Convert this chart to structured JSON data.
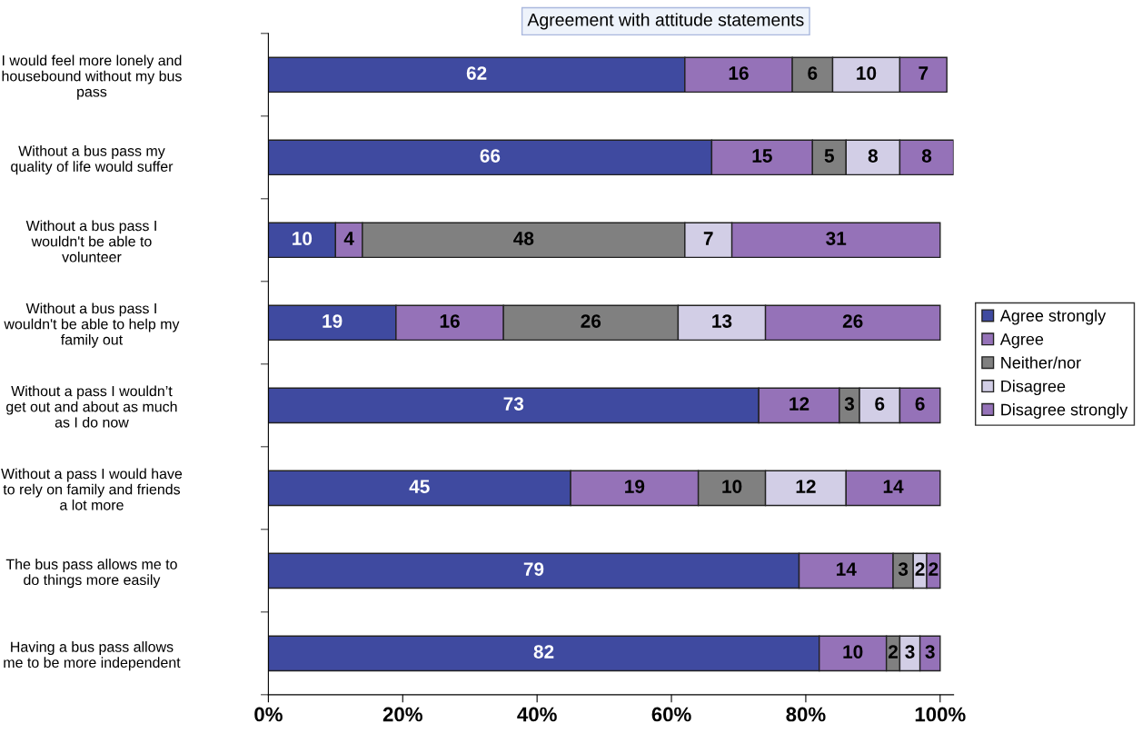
{
  "chart_data": {
    "type": "bar",
    "orientation": "horizontal",
    "stacked": true,
    "title": "Agreement with attitude statements",
    "categories": [
      "I would feel more lonely and housebound without my bus pass",
      "Without a bus pass my quality of life would suffer",
      "Without a bus pass I wouldn't be able to volunteer",
      "Without a bus pass I wouldn't be able to help my family out",
      "Without a pass I wouldn’t get out and about as much as I do now",
      "Without a pass I would have to rely on family and friends a lot more",
      "The bus pass allows me to do things more easily",
      "Having a bus pass allows me to be more independent"
    ],
    "series": [
      {
        "name": "Agree strongly",
        "color": "#3f4aa0",
        "values": [
          62,
          66,
          10,
          19,
          73,
          45,
          79,
          82
        ]
      },
      {
        "name": "Agree",
        "color": "#9572b8",
        "values": [
          16,
          15,
          4,
          16,
          12,
          19,
          14,
          10
        ]
      },
      {
        "name": "Neither/nor",
        "color": "#808080",
        "values": [
          6,
          5,
          48,
          26,
          3,
          10,
          3,
          2
        ]
      },
      {
        "name": "Disagree",
        "color": "#d2cee6",
        "values": [
          10,
          8,
          7,
          13,
          6,
          12,
          2,
          3
        ]
      },
      {
        "name": "Disagree strongly",
        "color": "#9572b8",
        "values": [
          7,
          8,
          31,
          26,
          6,
          14,
          2,
          3
        ]
      }
    ],
    "xlim": [
      0,
      102
    ],
    "xticks": [
      {
        "value": 0,
        "label": "0%"
      },
      {
        "value": 20,
        "label": "20%"
      },
      {
        "value": 40,
        "label": "40%"
      },
      {
        "value": 60,
        "label": "60%"
      },
      {
        "value": 80,
        "label": "80%"
      },
      {
        "value": 100,
        "label": "100%"
      }
    ],
    "data_labels": true,
    "legend": "right",
    "grid": false
  }
}
